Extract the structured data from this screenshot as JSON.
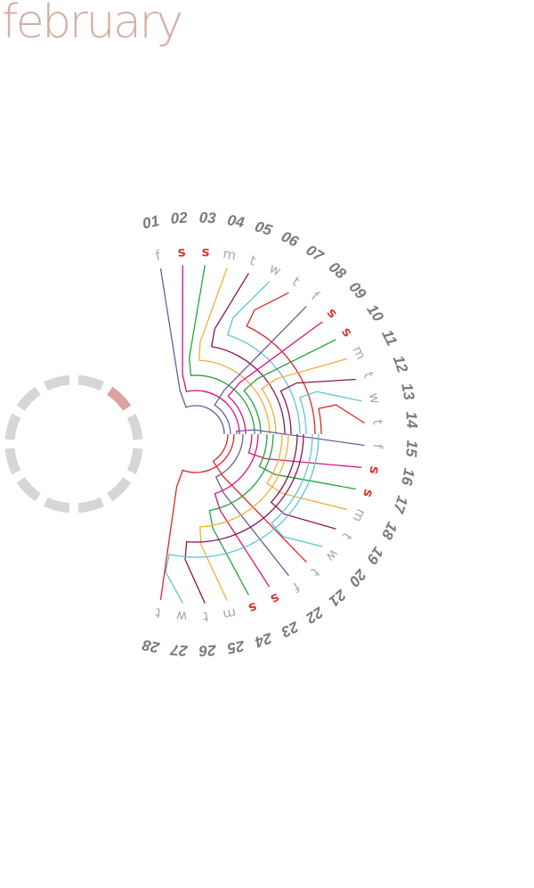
{
  "month": "february",
  "colors": {
    "title": "#d5aea6",
    "day_number": "#7a7a7a",
    "weekday": "#a9a9a9",
    "weekend": "#d73a32",
    "ring": "#d6d6d6",
    "ring_highlight": "#dba39e",
    "streams": [
      "#6a5c9e",
      "#d7137f",
      "#22a33a",
      "#f2ad3a",
      "#8a1458",
      "#5bc6d6",
      "#e2232a"
    ]
  },
  "progress_ring": {
    "segments": 12,
    "highlighted_segment": 2
  },
  "days": [
    {
      "num": "01",
      "wd": "f"
    },
    {
      "num": "02",
      "wd": "s"
    },
    {
      "num": "03",
      "wd": "s"
    },
    {
      "num": "04",
      "wd": "m"
    },
    {
      "num": "05",
      "wd": "t"
    },
    {
      "num": "06",
      "wd": "w"
    },
    {
      "num": "07",
      "wd": "t"
    },
    {
      "num": "08",
      "wd": "f"
    },
    {
      "num": "09",
      "wd": "s"
    },
    {
      "num": "10",
      "wd": "s"
    },
    {
      "num": "11",
      "wd": "m"
    },
    {
      "num": "12",
      "wd": "t"
    },
    {
      "num": "13",
      "wd": "w"
    },
    {
      "num": "14",
      "wd": "t"
    },
    {
      "num": "15",
      "wd": "f"
    },
    {
      "num": "16",
      "wd": "s"
    },
    {
      "num": "17",
      "wd": "s"
    },
    {
      "num": "18",
      "wd": "m"
    },
    {
      "num": "19",
      "wd": "t"
    },
    {
      "num": "20",
      "wd": "w"
    },
    {
      "num": "21",
      "wd": "t"
    },
    {
      "num": "22",
      "wd": "f"
    },
    {
      "num": "23",
      "wd": "s"
    },
    {
      "num": "24",
      "wd": "s"
    },
    {
      "num": "25",
      "wd": "m"
    },
    {
      "num": "26",
      "wd": "t"
    },
    {
      "num": "27",
      "wd": "w"
    },
    {
      "num": "28",
      "wd": "t"
    }
  ]
}
